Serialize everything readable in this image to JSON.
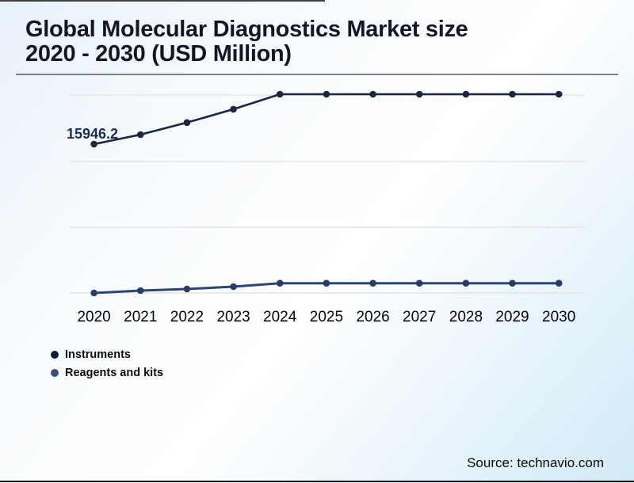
{
  "page": {
    "title_line1": "Global Molecular Diagnostics Market size",
    "title_line2": "2020 - 2030 (USD Million)",
    "source": "Source: technavio.com"
  },
  "legend": {
    "items": [
      {
        "label": "Instruments",
        "color": "#101b33"
      },
      {
        "label": "Reagents and kits",
        "color": "#3a4f7e"
      }
    ]
  },
  "chart_data": {
    "type": "line",
    "title": "Global Molecular Diagnostics Market size 2020 - 2030 (USD Million)",
    "categories": [
      "2020",
      "2021",
      "2022",
      "2023",
      "2024",
      "2025",
      "2026",
      "2027",
      "2028",
      "2029",
      "2030"
    ],
    "series": [
      {
        "name": "Instruments",
        "color": "#1a2642",
        "dot_color": "#1a2642",
        "values": [
          15946.2,
          16870,
          18030,
          19330,
          20780,
          20780,
          20780,
          20780,
          20780,
          20780,
          20780
        ]
      },
      {
        "name": "Reagents and kits",
        "color": "#2e4573",
        "dot_color": "#273d69",
        "values": [
          1530,
          1760,
          1920,
          2150,
          2480,
          2480,
          2480,
          2480,
          2480,
          2480,
          2480
        ]
      }
    ],
    "annotations": [
      {
        "text": "15946.2",
        "series": "Instruments",
        "category": "2020"
      }
    ],
    "ylim": [
      0,
      22400
    ],
    "grid": true,
    "y_axis_labels": false,
    "legend_position": "bottom-left",
    "xlabel": "",
    "ylabel": ""
  }
}
